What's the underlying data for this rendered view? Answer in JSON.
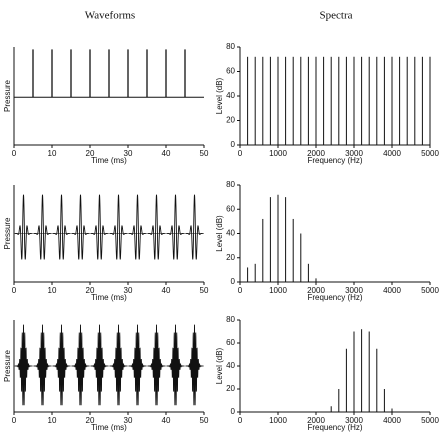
{
  "headers": [
    "Waveforms",
    "Spectra"
  ],
  "chart_data": [
    {
      "type": "impulse",
      "ylabel": "Pressure",
      "xlabel": "Time (ms)",
      "x": [
        5,
        10,
        15,
        20,
        25,
        30,
        35,
        40,
        45
      ],
      "values": [
        1,
        1,
        1,
        1,
        1,
        1,
        1,
        1,
        1
      ],
      "xlim": [
        0,
        50
      ],
      "xticks": [
        0,
        10,
        20,
        30,
        40,
        50
      ],
      "ylim": [
        -1,
        1.05
      ],
      "color": "#111"
    },
    {
      "type": "stem",
      "ylabel": "Level (dB)",
      "xlabel": "Frequency (Hz)",
      "x": [
        200,
        400,
        600,
        800,
        1000,
        1200,
        1400,
        1600,
        1800,
        2000,
        2200,
        2400,
        2600,
        2800,
        3000,
        3200,
        3400,
        3600,
        3800,
        4000,
        4200,
        4400,
        4600,
        4800,
        5000
      ],
      "values": [
        72,
        72,
        72,
        72,
        72,
        72,
        72,
        72,
        72,
        72,
        72,
        72,
        72,
        72,
        72,
        72,
        72,
        72,
        72,
        72,
        72,
        72,
        72,
        72,
        72
      ],
      "xlim": [
        0,
        5000
      ],
      "xticks": [
        0,
        1000,
        2000,
        3000,
        4000,
        5000
      ],
      "ylim": [
        0,
        80
      ],
      "yticks": [
        0,
        20,
        40,
        60,
        80
      ],
      "color": "#111"
    },
    {
      "type": "burst",
      "ylabel": "Pressure",
      "xlabel": "Time (ms)",
      "x": [
        2.5,
        7.5,
        12.5,
        17.5,
        22.5,
        27.5,
        32.5,
        37.5,
        42.5,
        47.5
      ],
      "values": [
        0.8,
        0.8,
        0.8,
        0.8,
        0.8,
        0.8,
        0.8,
        0.8,
        0.8,
        0.8
      ],
      "xlim": [
        0,
        50
      ],
      "xticks": [
        0,
        10,
        20,
        30,
        40,
        50
      ],
      "ylim": [
        -1,
        1
      ],
      "color": "#111"
    },
    {
      "type": "stem",
      "ylabel": "Level (dB)",
      "xlabel": "Frequency (Hz)",
      "x": [
        200,
        400,
        600,
        800,
        1000,
        1200,
        1400,
        1600,
        1800,
        2000
      ],
      "values": [
        12,
        15,
        52,
        70,
        72,
        70,
        52,
        40,
        15,
        3
      ],
      "xlim": [
        0,
        5000
      ],
      "xticks": [
        0,
        1000,
        2000,
        3000,
        4000,
        5000
      ],
      "ylim": [
        0,
        80
      ],
      "yticks": [
        0,
        20,
        40,
        60,
        80
      ],
      "color": "#111"
    },
    {
      "type": "burst",
      "ylabel": "Pressure",
      "xlabel": "Time (ms)",
      "x": [
        2.5,
        7.5,
        12.5,
        17.5,
        22.5,
        27.5,
        32.5,
        37.5,
        42.5,
        47.5
      ],
      "values": [
        0.9,
        0.9,
        0.9,
        0.9,
        0.9,
        0.9,
        0.9,
        0.9,
        0.9,
        0.9
      ],
      "xlim": [
        0,
        50
      ],
      "xticks": [
        0,
        10,
        20,
        30,
        40,
        50
      ],
      "ylim": [
        -1,
        1
      ],
      "color": "#111"
    },
    {
      "type": "stem",
      "ylabel": "Level (dB)",
      "xlabel": "Frequency (Hz)",
      "x": [
        2400,
        2600,
        2800,
        3000,
        3200,
        3400,
        3600,
        3800,
        4000
      ],
      "values": [
        5,
        20,
        55,
        70,
        72,
        70,
        55,
        20,
        3
      ],
      "xlim": [
        0,
        5000
      ],
      "xticks": [
        0,
        1000,
        2000,
        3000,
        4000,
        5000
      ],
      "ylim": [
        0,
        80
      ],
      "yticks": [
        0,
        20,
        40,
        60,
        80
      ],
      "color": "#111"
    }
  ]
}
